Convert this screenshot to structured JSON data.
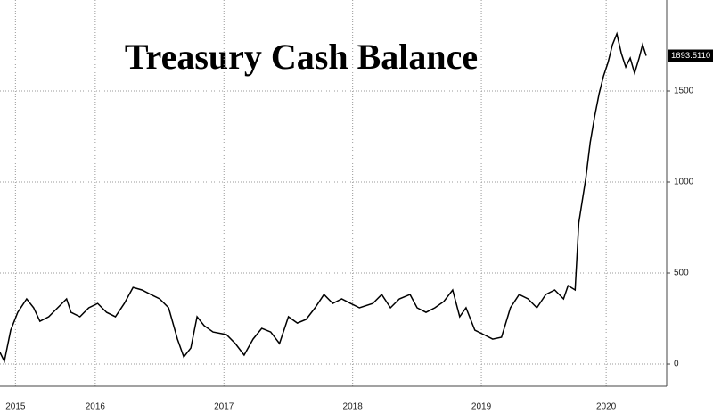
{
  "chart_data": {
    "type": "line",
    "title": "Treasury Cash Balance",
    "x": [
      2015.76,
      2015.794,
      2015.843,
      2015.898,
      2015.967,
      2016.022,
      2016.07,
      2016.139,
      2016.208,
      2016.277,
      2016.312,
      2016.381,
      2016.45,
      2016.519,
      2016.588,
      2016.657,
      2016.726,
      2016.794,
      2016.863,
      2016.932,
      2017.001,
      2017.07,
      2017.139,
      2017.188,
      2017.243,
      2017.291,
      2017.346,
      2017.415,
      2017.519,
      2017.588,
      2017.657,
      2017.726,
      2017.794,
      2017.863,
      2017.932,
      2018.001,
      2018.07,
      2018.139,
      2018.208,
      2018.277,
      2018.346,
      2018.415,
      2018.484,
      2018.553,
      2018.657,
      2018.726,
      2018.794,
      2018.863,
      2018.946,
      2019.001,
      2019.07,
      2019.139,
      2019.208,
      2019.277,
      2019.332,
      2019.381,
      2019.45,
      2019.519,
      2019.588,
      2019.657,
      2019.726,
      2019.794,
      2019.863,
      2019.932,
      2020.001,
      2020.07,
      2020.139,
      2020.174,
      2020.229,
      2020.257,
      2020.284,
      2020.312,
      2020.346,
      2020.381,
      2020.415,
      2020.45,
      2020.484,
      2020.519,
      2020.553,
      2020.588,
      2020.622,
      2020.657,
      2020.691,
      2020.726,
      2020.753,
      2020.781
    ],
    "series": [
      {
        "color": "#000000",
        "values": [
          64,
          15,
          186,
          284,
          358,
          309,
          235,
          260,
          309,
          358,
          284,
          260,
          309,
          333,
          284,
          260,
          333,
          421,
          407,
          382,
          358,
          309,
          137,
          39,
          88,
          260,
          211,
          176,
          162,
          113,
          49,
          137,
          196,
          176,
          113,
          260,
          225,
          245,
          309,
          382,
          333,
          358,
          333,
          309,
          333,
          382,
          309,
          358,
          382,
          309,
          284,
          309,
          343,
          407,
          260,
          309,
          186,
          162,
          137,
          147,
          309,
          382,
          358,
          309,
          382,
          407,
          358,
          431,
          407,
          775,
          897,
          1020,
          1216,
          1363,
          1485,
          1583,
          1657,
          1755,
          1814,
          1706,
          1632,
          1681,
          1598,
          1681,
          1755,
          1693.511
        ]
      }
    ],
    "last_value": {
      "value": 1693.511,
      "label": "1693.5110"
    },
    "xlim": [
      2015.76,
      2020.94
    ],
    "xticks": [
      {
        "value": 2015.88,
        "label": "2015"
      },
      {
        "value": 2016.5,
        "label": "2016"
      },
      {
        "value": 2017.5,
        "label": "2017"
      },
      {
        "value": 2018.5,
        "label": "2018"
      },
      {
        "value": 2019.5,
        "label": "2019"
      },
      {
        "value": 2020.47,
        "label": "2020"
      }
    ],
    "ylim": [
      -120,
      2000
    ],
    "yticks": [
      0,
      500,
      1000,
      1500
    ],
    "grid": true
  }
}
